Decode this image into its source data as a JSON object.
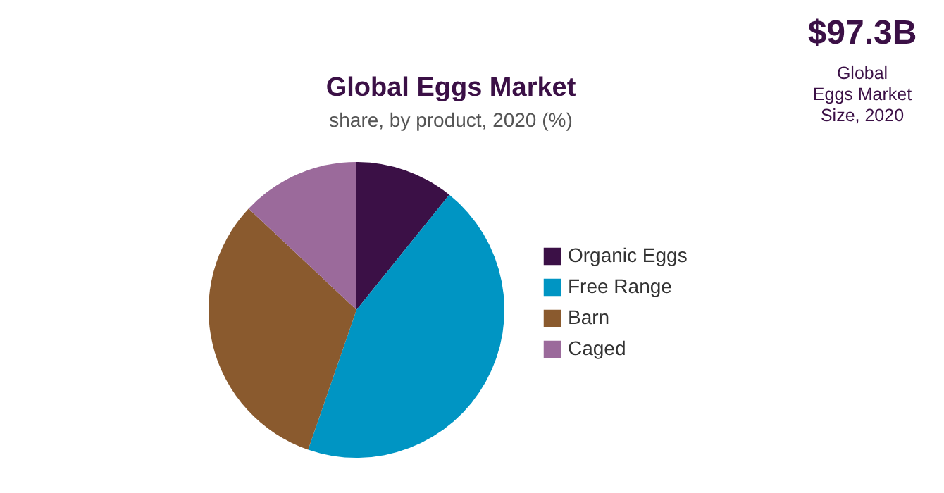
{
  "chart_data": {
    "type": "pie",
    "title": "Global Eggs Market",
    "subtitle": "share, by product, 2020 (%)",
    "categories": [
      "Organic Eggs",
      "Free Range",
      "Barn",
      "Caged"
    ],
    "values": [
      10.8,
      44.5,
      31.7,
      13.0
    ],
    "colors": [
      "#3b1046",
      "#0095c3",
      "#8a5a2e",
      "#9b6a9b"
    ],
    "legend": "right",
    "annotations": [
      "$97.3B",
      "Global Eggs Market Size, 2020"
    ]
  }
}
